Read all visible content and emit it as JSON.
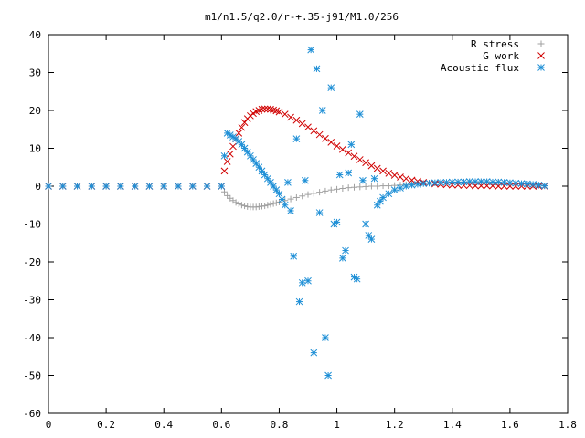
{
  "chart_data": {
    "type": "scatter",
    "title": "m1/n1.5/q2.0/r-+.35-j91/M1.0/256",
    "xlabel": "",
    "ylabel": "",
    "xlim": [
      0,
      1.8
    ],
    "ylim": [
      -60,
      40
    ],
    "xticks": [
      0,
      0.2,
      0.4,
      0.6,
      0.8,
      1,
      1.2,
      1.4,
      1.6,
      1.8
    ],
    "xtick_labels": [
      "0",
      "0.2",
      "0.4",
      "0.6",
      "0.8",
      "1",
      "1.2",
      "1.4",
      "1.6",
      "1.8"
    ],
    "yticks": [
      40,
      30,
      20,
      10,
      0,
      -10,
      -20,
      -30,
      -40,
      -50,
      -60
    ],
    "ytick_labels": [
      "40",
      "30",
      "20",
      "10",
      "0",
      "-10",
      "-20",
      "-30",
      "-40",
      "-50",
      "-60"
    ],
    "grid": false,
    "legend_position": "top-right",
    "series": [
      {
        "name": "R stress",
        "marker": "plus",
        "color": "#a0a0a0",
        "description": "Zero until x≈0.6, dips to about -5.5 near x≈0.72, recovers to ~0 by x≈1.1, slightly positive (~1) between 1.3 and 1.7.",
        "x": [
          0,
          0.05,
          0.1,
          0.15,
          0.2,
          0.25,
          0.3,
          0.35,
          0.4,
          0.45,
          0.5,
          0.55,
          0.6,
          0.61,
          0.62,
          0.63,
          0.64,
          0.65,
          0.66,
          0.67,
          0.68,
          0.69,
          0.7,
          0.71,
          0.72,
          0.73,
          0.74,
          0.75,
          0.76,
          0.77,
          0.78,
          0.79,
          0.8,
          0.82,
          0.84,
          0.86,
          0.88,
          0.9,
          0.92,
          0.94,
          0.96,
          0.98,
          1.0,
          1.02,
          1.04,
          1.06,
          1.08,
          1.1,
          1.12,
          1.14,
          1.16,
          1.18,
          1.2,
          1.22,
          1.24,
          1.26,
          1.28,
          1.3,
          1.32,
          1.34,
          1.36,
          1.38,
          1.4,
          1.42,
          1.44,
          1.46,
          1.48,
          1.5,
          1.52,
          1.54,
          1.56,
          1.58,
          1.6,
          1.62,
          1.64,
          1.66,
          1.68,
          1.7,
          1.72
        ],
        "y": [
          0,
          0,
          0,
          0,
          0,
          0,
          0,
          0,
          0,
          0,
          0,
          0,
          0,
          -1.5,
          -2.5,
          -3.2,
          -3.8,
          -4.3,
          -4.7,
          -5.0,
          -5.2,
          -5.4,
          -5.5,
          -5.5,
          -5.5,
          -5.4,
          -5.3,
          -5.2,
          -5.0,
          -4.8,
          -4.6,
          -4.4,
          -4.2,
          -3.8,
          -3.4,
          -3.0,
          -2.6,
          -2.2,
          -1.9,
          -1.6,
          -1.3,
          -1.0,
          -0.8,
          -0.6,
          -0.4,
          -0.3,
          -0.2,
          -0.1,
          0,
          0,
          0.1,
          0.1,
          0.2,
          0.3,
          0.4,
          0.5,
          0.6,
          0.7,
          0.8,
          0.9,
          1.0,
          1.0,
          1.1,
          1.1,
          1.1,
          1.1,
          1.1,
          1.1,
          1.1,
          1.0,
          1.0,
          0.9,
          0.8,
          0.7,
          0.6,
          0.5,
          0.3,
          0.2,
          0.1
        ]
      },
      {
        "name": "G work",
        "marker": "cross",
        "color": "#d00000",
        "description": "Zero until x≈0.6, rises steeply to peak ~20.5 near x≈0.75, decays smoothly to ~0 by x≈1.5.",
        "x": [
          0,
          0.05,
          0.1,
          0.15,
          0.2,
          0.25,
          0.3,
          0.35,
          0.4,
          0.45,
          0.5,
          0.55,
          0.6,
          0.61,
          0.62,
          0.63,
          0.64,
          0.65,
          0.66,
          0.67,
          0.68,
          0.69,
          0.7,
          0.71,
          0.72,
          0.73,
          0.74,
          0.75,
          0.76,
          0.77,
          0.78,
          0.79,
          0.8,
          0.82,
          0.84,
          0.86,
          0.88,
          0.9,
          0.92,
          0.94,
          0.96,
          0.98,
          1.0,
          1.02,
          1.04,
          1.06,
          1.08,
          1.1,
          1.12,
          1.14,
          1.16,
          1.18,
          1.2,
          1.22,
          1.24,
          1.26,
          1.28,
          1.3,
          1.32,
          1.34,
          1.36,
          1.38,
          1.4,
          1.42,
          1.44,
          1.46,
          1.48,
          1.5,
          1.52,
          1.54,
          1.56,
          1.58,
          1.6,
          1.62,
          1.64,
          1.66,
          1.68,
          1.7,
          1.72
        ],
        "y": [
          0,
          0,
          0,
          0,
          0,
          0,
          0,
          0,
          0,
          0,
          0,
          0,
          0,
          4.0,
          6.5,
          8.5,
          10.5,
          12.5,
          14.0,
          15.5,
          16.8,
          17.8,
          18.6,
          19.2,
          19.7,
          20.0,
          20.3,
          20.4,
          20.4,
          20.3,
          20.1,
          19.9,
          19.6,
          19.0,
          18.2,
          17.4,
          16.5,
          15.6,
          14.6,
          13.6,
          12.6,
          11.6,
          10.6,
          9.7,
          8.8,
          7.9,
          7.0,
          6.2,
          5.4,
          4.7,
          4.0,
          3.4,
          2.9,
          2.4,
          2.0,
          1.6,
          1.3,
          1.0,
          0.8,
          0.6,
          0.5,
          0.4,
          0.3,
          0.3,
          0.2,
          0.2,
          0.1,
          0.1,
          0.1,
          0.1,
          0,
          0,
          0,
          0,
          0,
          0,
          0,
          0,
          0
        ]
      },
      {
        "name": "Acoustic flux",
        "marker": "star",
        "color": "#1e8fd6",
        "description": "Zero until x≈0.6, jumps to ~14 at x≈0.63, smooth branch decays to ~-2 near x≈0.8 then rises to ~1 by 1.4; large oscillating scatter between x≈0.8 and 1.2 spanning about -50 to +36.",
        "x": [
          0,
          0.05,
          0.1,
          0.15,
          0.2,
          0.25,
          0.3,
          0.35,
          0.4,
          0.45,
          0.5,
          0.55,
          0.6,
          0.61,
          0.62,
          0.63,
          0.64,
          0.65,
          0.66,
          0.67,
          0.68,
          0.69,
          0.7,
          0.71,
          0.72,
          0.73,
          0.74,
          0.75,
          0.76,
          0.77,
          0.78,
          0.79,
          0.8,
          0.81,
          0.82,
          0.83,
          0.84,
          0.85,
          0.86,
          0.87,
          0.88,
          0.89,
          0.9,
          0.91,
          0.92,
          0.93,
          0.94,
          0.95,
          0.96,
          0.97,
          0.98,
          0.99,
          1.0,
          1.01,
          1.02,
          1.03,
          1.04,
          1.05,
          1.06,
          1.07,
          1.08,
          1.09,
          1.1,
          1.11,
          1.12,
          1.13,
          1.14,
          1.15,
          1.16,
          1.18,
          1.2,
          1.22,
          1.24,
          1.26,
          1.28,
          1.3,
          1.32,
          1.34,
          1.36,
          1.38,
          1.4,
          1.42,
          1.44,
          1.46,
          1.48,
          1.5,
          1.52,
          1.54,
          1.56,
          1.58,
          1.6,
          1.62,
          1.64,
          1.66,
          1.68,
          1.7,
          1.72
        ],
        "y": [
          0,
          0,
          0,
          0,
          0,
          0,
          0,
          0,
          0,
          0,
          0,
          0,
          0,
          8.0,
          14.0,
          13.5,
          13.0,
          12.5,
          11.8,
          11.0,
          10.0,
          9.0,
          8.0,
          7.0,
          6.0,
          5.0,
          4.0,
          3.0,
          2.0,
          1.0,
          0,
          -1.0,
          -2.0,
          -3.5,
          -5.0,
          1.0,
          -6.5,
          -18.5,
          12.5,
          -30.5,
          -25.5,
          1.5,
          -25.0,
          36.0,
          -44.0,
          31.0,
          -7.0,
          20.0,
          -40.0,
          -50.0,
          26.0,
          -10.0,
          -9.5,
          3.0,
          -19.0,
          -17.0,
          3.5,
          11.0,
          -24.0,
          -24.5,
          19.0,
          1.5,
          -10.0,
          -13.0,
          -14.0,
          2.0,
          -5.0,
          -4.0,
          -3.0,
          -2.0,
          -1.0,
          -0.5,
          0,
          0.3,
          0.5,
          0.7,
          0.8,
          0.9,
          1.0,
          1.0,
          1.1,
          1.1,
          1.1,
          1.2,
          1.2,
          1.2,
          1.2,
          1.1,
          1.1,
          1.0,
          0.9,
          0.8,
          0.7,
          0.6,
          0.5,
          0.3,
          0.1
        ]
      }
    ]
  }
}
